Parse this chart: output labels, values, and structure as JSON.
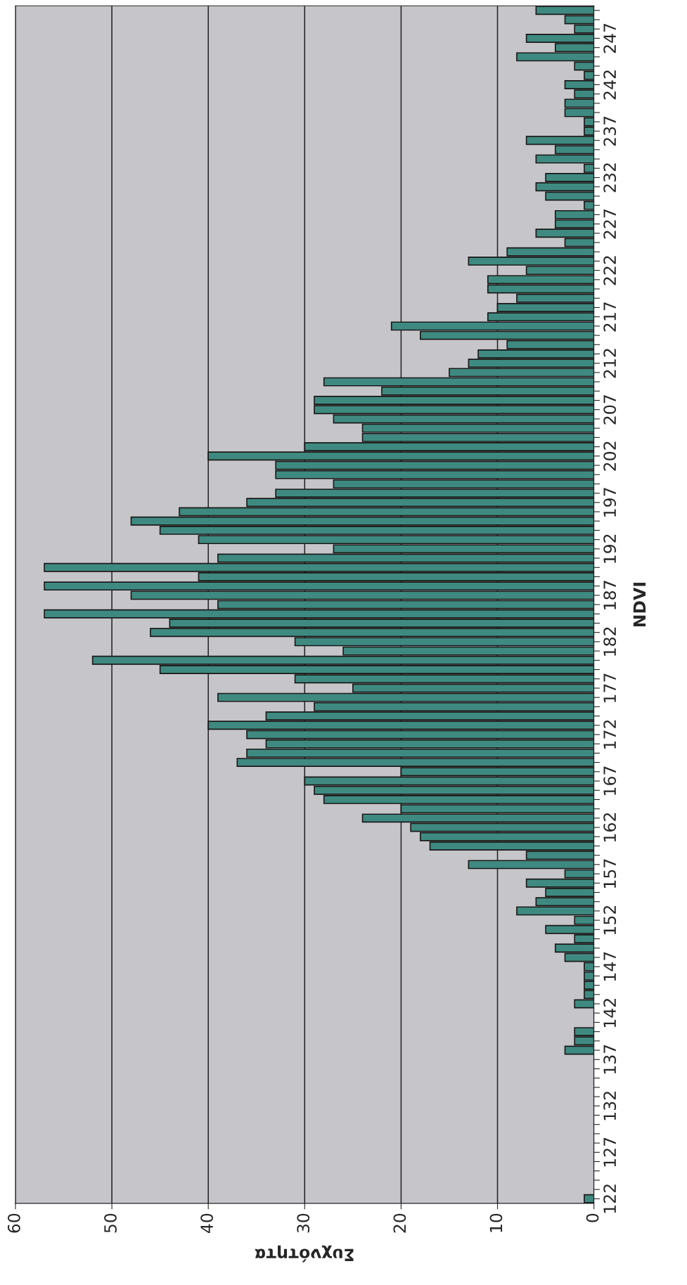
{
  "chart_data": {
    "type": "bar",
    "orientation": "horizontal",
    "xlabel": "Συχνότητα",
    "ylabel": "NDVI",
    "categories": [
      null,
      null,
      null,
      "247",
      null,
      null,
      null,
      null,
      "242",
      null,
      null,
      null,
      null,
      "237",
      null,
      null,
      null,
      null,
      "232",
      null,
      null,
      null,
      null,
      "227",
      null,
      null,
      null,
      null,
      "222",
      null,
      null,
      null,
      null,
      "217",
      null,
      null,
      null,
      null,
      "212",
      null,
      null,
      null,
      null,
      "207",
      null,
      null,
      null,
      null,
      "202",
      null,
      null,
      null,
      null,
      "197",
      null,
      null,
      null,
      null,
      "192",
      null,
      null,
      null,
      null,
      "187",
      null,
      null,
      null,
      null,
      "182",
      null,
      null,
      null,
      null,
      "177",
      null,
      null,
      null,
      null,
      "172",
      null,
      null,
      null,
      null,
      "167",
      null,
      null,
      null,
      null,
      "162",
      null,
      null,
      null,
      null,
      "157",
      null,
      null,
      null,
      null,
      "152",
      null,
      null,
      null,
      null,
      "147",
      null,
      null,
      null,
      null,
      "142",
      null,
      null,
      null,
      null,
      "137",
      null,
      null,
      null,
      null,
      "132",
      null,
      null,
      null,
      null,
      "127",
      null,
      null,
      null,
      null,
      "122"
    ],
    "values": [
      6,
      3,
      2,
      7,
      4,
      8,
      2,
      1,
      3,
      2,
      3,
      3,
      1,
      1,
      7,
      4,
      6,
      1,
      5,
      6,
      5,
      1,
      4,
      4,
      6,
      3,
      9,
      13,
      7,
      11,
      11,
      8,
      10,
      11,
      21,
      18,
      9,
      12,
      13,
      15,
      28,
      22,
      29,
      29,
      27,
      24,
      24,
      30,
      40,
      33,
      33,
      27,
      33,
      36,
      43,
      48,
      45,
      41,
      27,
      39,
      57,
      41,
      57,
      48,
      39,
      57,
      44,
      46,
      31,
      26,
      52,
      45,
      31,
      25,
      39,
      29,
      34,
      40,
      36,
      34,
      36,
      37,
      20,
      30,
      29,
      28,
      20,
      24,
      19,
      18,
      17,
      7,
      13,
      3,
      7,
      5,
      6,
      8,
      2,
      5,
      2,
      4,
      3,
      1,
      1,
      1,
      1,
      2,
      0,
      0,
      2,
      2,
      3,
      0,
      0,
      0,
      0,
      0,
      0,
      0,
      0,
      0,
      0,
      0,
      0,
      0,
      0,
      0,
      1
    ],
    "color": "#3f8a80",
    "xlim": [
      60,
      0
    ],
    "xticks": [
      0,
      10,
      20,
      30,
      40,
      50,
      60
    ],
    "grid": "x"
  }
}
